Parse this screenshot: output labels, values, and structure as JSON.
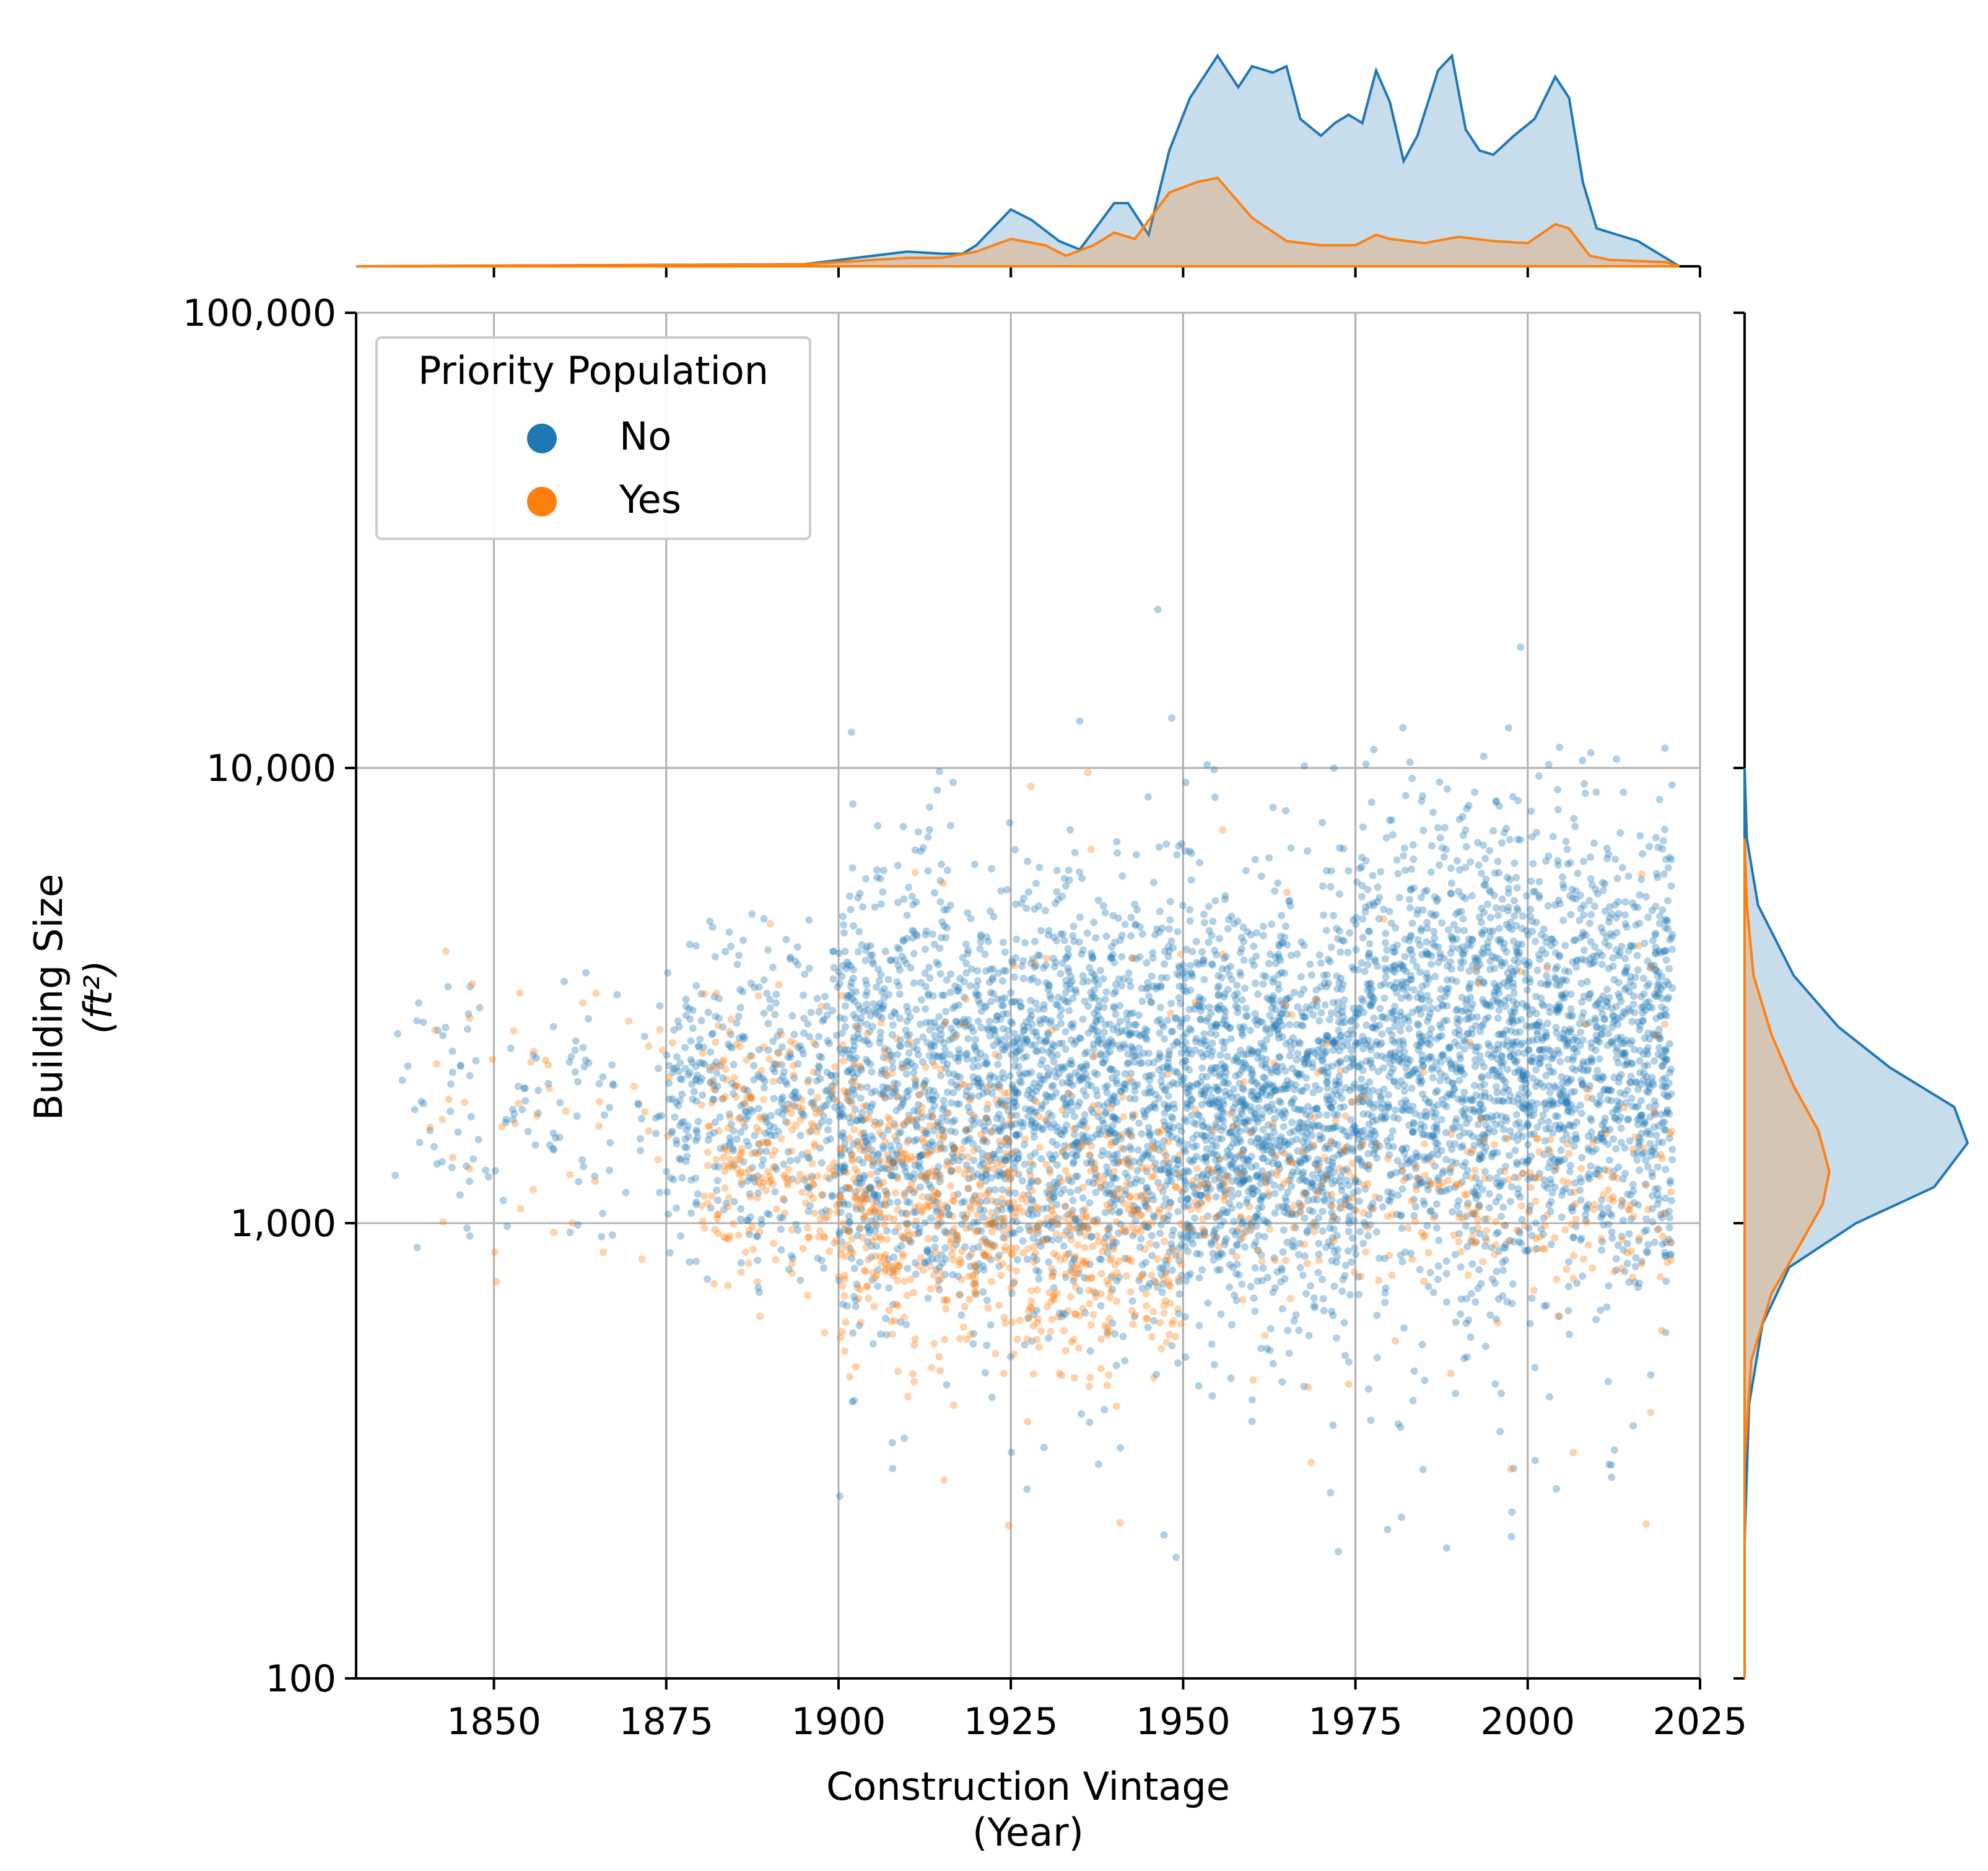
{
  "chart_data": {
    "type": "scatter",
    "title": "",
    "xlabel": "Construction Vintage",
    "xlabel_unit": "(Year)",
    "ylabel": "Building Size",
    "ylabel_unit": "(ft²)",
    "xlim": [
      1830,
      2025
    ],
    "ylim": [
      100,
      100000
    ],
    "y_scale": "log",
    "grid": true,
    "x_ticks": [
      1850,
      1875,
      1900,
      1925,
      1950,
      1975,
      2000,
      2025
    ],
    "y_ticks": [
      100,
      1000,
      10000,
      100000
    ],
    "y_tick_labels": [
      "100",
      "1,000",
      "10,000",
      "100,000"
    ],
    "legend": {
      "title": "Priority Population",
      "placement": "top-left",
      "entries": [
        "No",
        "Yes"
      ]
    },
    "series": [
      {
        "name": "No",
        "color": "#1f77b4",
        "bands": [
          {
            "x": [
              1835,
              1875
            ],
            "y": [
              700,
              4500
            ],
            "n": 120
          },
          {
            "x": [
              1875,
              1900
            ],
            "y": [
              600,
              6000
            ],
            "n": 420
          },
          {
            "x": [
              1900,
              1925
            ],
            "y": [
              380,
              9000
            ],
            "n": 900
          },
          {
            "x": [
              1925,
              1950
            ],
            "y": [
              400,
              9000
            ],
            "n": 1000
          },
          {
            "x": [
              1950,
              1975
            ],
            "y": [
              400,
              8000
            ],
            "n": 1200
          },
          {
            "x": [
              1975,
              2021
            ],
            "y": [
              450,
              13000
            ],
            "n": 2000
          },
          {
            "x": [
              1900,
              2021
            ],
            "y": [
              100,
              30000
            ],
            "n": 500
          }
        ],
        "marginal_x": {
          "x": [
            1830,
            1895,
            1900,
            1905,
            1910,
            1915,
            1918,
            1920,
            1925,
            1928,
            1932,
            1935,
            1940,
            1942,
            1945,
            1948,
            1951,
            1955,
            1958,
            1960,
            1963,
            1965,
            1967,
            1970,
            1972,
            1974,
            1976,
            1978,
            1980,
            1982,
            1984,
            1987,
            1989,
            1991,
            1993,
            1995,
            1998,
            2001,
            2004,
            2006,
            2008,
            2010,
            2013,
            2016,
            2019,
            2022
          ],
          "density": [
            0.0,
            0.01,
            0.03,
            0.05,
            0.07,
            0.06,
            0.06,
            0.1,
            0.27,
            0.22,
            0.12,
            0.08,
            0.3,
            0.3,
            0.15,
            0.55,
            0.8,
            1.0,
            0.85,
            0.95,
            0.92,
            0.95,
            0.7,
            0.62,
            0.68,
            0.72,
            0.68,
            0.93,
            0.78,
            0.5,
            0.62,
            0.93,
            1.0,
            0.65,
            0.55,
            0.53,
            0.62,
            0.7,
            0.9,
            0.8,
            0.4,
            0.18,
            0.15,
            0.12,
            0.06,
            0.0
          ]
        },
        "marginal_y": {
          "y": [
            100,
            200,
            400,
            600,
            800,
            1000,
            1200,
            1500,
            1800,
            2200,
            2700,
            3500,
            5000,
            7000,
            10000
          ],
          "density": [
            0.0,
            0.0,
            0.02,
            0.08,
            0.2,
            0.5,
            0.85,
            1.0,
            0.94,
            0.65,
            0.42,
            0.22,
            0.06,
            0.01,
            0.0
          ]
        }
      },
      {
        "name": "Yes",
        "color": "#ff7f0e",
        "bands": [
          {
            "x": [
              1840,
              1880
            ],
            "y": [
              600,
              6000
            ],
            "n": 50
          },
          {
            "x": [
              1880,
              1900
            ],
            "y": [
              500,
              4000
            ],
            "n": 200
          },
          {
            "x": [
              1900,
              1925
            ],
            "y": [
              350,
              3500
            ],
            "n": 400
          },
          {
            "x": [
              1925,
              1950
            ],
            "y": [
              350,
              2500
            ],
            "n": 300
          },
          {
            "x": [
              1950,
              2021
            ],
            "y": [
              600,
              2000
            ],
            "n": 250
          },
          {
            "x": [
              1880,
              2021
            ],
            "y": [
              100,
              20000
            ],
            "n": 150
          }
        ],
        "marginal_x": {
          "x": [
            1830,
            1895,
            1905,
            1910,
            1915,
            1920,
            1925,
            1930,
            1933,
            1937,
            1940,
            1943,
            1948,
            1952,
            1955,
            1960,
            1965,
            1970,
            1975,
            1978,
            1980,
            1985,
            1990,
            1995,
            2000,
            2004,
            2006,
            2009,
            2012,
            2020,
            2022
          ],
          "density": [
            0.0,
            0.01,
            0.03,
            0.04,
            0.04,
            0.07,
            0.13,
            0.1,
            0.05,
            0.1,
            0.16,
            0.13,
            0.35,
            0.4,
            0.42,
            0.23,
            0.12,
            0.1,
            0.1,
            0.15,
            0.13,
            0.11,
            0.14,
            0.12,
            0.11,
            0.2,
            0.18,
            0.05,
            0.03,
            0.02,
            0.0
          ]
        },
        "marginal_y": {
          "y": [
            100,
            300,
            500,
            700,
            900,
            1100,
            1300,
            1600,
            2000,
            2600,
            3500,
            5000,
            7000
          ],
          "density": [
            0.0,
            0.0,
            0.03,
            0.12,
            0.25,
            0.35,
            0.38,
            0.33,
            0.22,
            0.12,
            0.04,
            0.01,
            0.0
          ]
        }
      }
    ]
  }
}
